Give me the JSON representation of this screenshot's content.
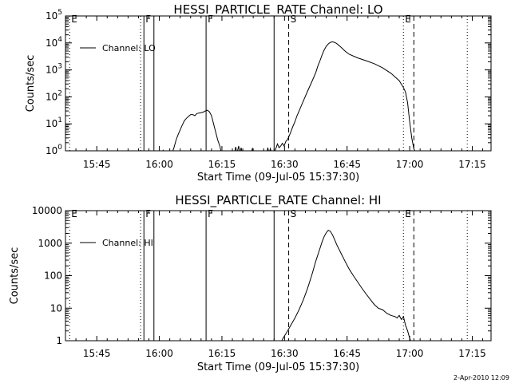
{
  "footer": {
    "timestamp": "2-Apr-2010 12:09"
  },
  "chart_data": [
    {
      "type": "line",
      "title": "HESSI_PARTICLE_RATE Channel: LO",
      "xlabel": "Start Time (09-Jul-05 15:37:30)",
      "ylabel": "Counts/sec",
      "x_unit": "minutes since 15:37:30",
      "xlim": [
        0,
        102
      ],
      "yscale": "log",
      "ylim": [
        1,
        100000
      ],
      "xticks": [
        {
          "x": 7.5,
          "label": "15:45"
        },
        {
          "x": 22.5,
          "label": "16:00"
        },
        {
          "x": 37.5,
          "label": "16:15"
        },
        {
          "x": 52.5,
          "label": "16:30"
        },
        {
          "x": 67.5,
          "label": "16:45"
        },
        {
          "x": 82.5,
          "label": "17:00"
        },
        {
          "x": 97.5,
          "label": "17:15"
        }
      ],
      "yticks": [
        {
          "y": 1,
          "label": "10^0"
        },
        {
          "y": 10,
          "label": "10^1"
        },
        {
          "y": 100,
          "label": "10^2"
        },
        {
          "y": 1000,
          "label": "10^3"
        },
        {
          "y": 10000,
          "label": "10^4"
        },
        {
          "y": 100000,
          "label": "10^5"
        }
      ],
      "legend": {
        "position": "top-left",
        "entries": [
          "Channel: LO"
        ]
      },
      "markers": [
        {
          "x": 1.0,
          "label": "E",
          "style": "dotted"
        },
        {
          "x": 18.0,
          "label": "",
          "style": "dotted"
        },
        {
          "x": 18.8,
          "label": "F",
          "style": "solid"
        },
        {
          "x": 21.2,
          "label": "",
          "style": "solid"
        },
        {
          "x": 33.7,
          "label": "F",
          "style": "solid"
        },
        {
          "x": 50.0,
          "label": "",
          "style": "solid"
        },
        {
          "x": 53.5,
          "label": "S",
          "style": "dashed"
        },
        {
          "x": 81.0,
          "label": "E",
          "style": "dotted"
        },
        {
          "x": 83.5,
          "label": "",
          "style": "dashed"
        },
        {
          "x": 96.3,
          "label": "",
          "style": "dotted"
        }
      ],
      "series": [
        {
          "segments": [
            {
              "x": [
                23.0,
                23.4,
                23.8
              ],
              "y": [
                0.8,
                1.05,
                0.8
              ]
            },
            {
              "x": [
                25.5,
                26.0,
                26.5,
                27.0,
                27.5,
                28.0,
                28.5,
                29.0,
                29.5,
                30.0,
                30.5,
                31.0,
                31.5,
                32.0,
                32.5,
                33.0,
                33.5,
                34.0,
                34.5,
                35.0,
                35.5,
                36.0,
                36.5,
                37.0,
                37.4
              ],
              "y": [
                0.8,
                1.3,
                2.5,
                4,
                6,
                9,
                13,
                16,
                19,
                22,
                22,
                20,
                24,
                25,
                26,
                27,
                30,
                32,
                28,
                20,
                10,
                5,
                2.5,
                1.5,
                0.8
              ]
            },
            {
              "x": [
                40.5,
                40.8,
                41.1,
                41.5,
                41.8,
                42.1,
                42.4
              ],
              "y": [
                0.8,
                1.4,
                0.8,
                1.5,
                0.8,
                1.3,
                0.8
              ]
            },
            {
              "x": [
                44.5,
                44.8,
                45.1
              ],
              "y": [
                0.8,
                1.2,
                0.8
              ]
            },
            {
              "x": [
                48.2,
                48.5,
                48.8,
                49.1,
                49.4
              ],
              "y": [
                0.8,
                1.3,
                0.8,
                1.2,
                0.8
              ]
            },
            {
              "x": [
                50.0,
                50.4,
                50.8,
                51.2,
                51.6,
                52.0,
                52.4,
                52.8,
                53.2,
                53.6,
                54.0,
                54.5,
                55.0,
                55.5,
                56.0,
                57.0,
                58.0,
                59.0,
                60.0,
                60.5,
                61.0,
                61.5,
                62.0,
                62.5,
                63.0,
                63.5,
                64.0,
                64.5,
                65.0,
                66.0,
                67.0,
                68.0,
                70.0,
                72.0,
                74.0,
                76.0,
                78.0,
                80.0,
                81.0,
                81.5,
                82.0,
                82.5,
                83.0,
                83.5,
                84.0
              ],
              "y": [
                0.8,
                1.2,
                1.8,
                1.3,
                1.5,
                1.9,
                1.5,
                2.2,
                2.6,
                3.5,
                5,
                8,
                12,
                20,
                30,
                70,
                160,
                350,
                800,
                1400,
                2200,
                3600,
                5500,
                7500,
                9200,
                10500,
                11000,
                10500,
                9500,
                7000,
                5000,
                3800,
                2800,
                2200,
                1700,
                1200,
                750,
                400,
                220,
                150,
                60,
                12,
                3,
                1.2,
                0.8
              ]
            }
          ]
        }
      ]
    },
    {
      "type": "line",
      "title": "HESSI_PARTICLE_RATE Channel: HI",
      "xlabel": "Start Time (09-Jul-05 15:37:30)",
      "ylabel": "Counts/sec",
      "x_unit": "minutes since 15:37:30",
      "xlim": [
        0,
        102
      ],
      "yscale": "log",
      "ylim": [
        1,
        10000
      ],
      "xticks": [
        {
          "x": 7.5,
          "label": "15:45"
        },
        {
          "x": 22.5,
          "label": "16:00"
        },
        {
          "x": 37.5,
          "label": "16:15"
        },
        {
          "x": 52.5,
          "label": "16:30"
        },
        {
          "x": 67.5,
          "label": "16:45"
        },
        {
          "x": 82.5,
          "label": "17:00"
        },
        {
          "x": 97.5,
          "label": "17:15"
        }
      ],
      "yticks": [
        {
          "y": 1,
          "label": "1"
        },
        {
          "y": 10,
          "label": "10"
        },
        {
          "y": 100,
          "label": "100"
        },
        {
          "y": 1000,
          "label": "1000"
        },
        {
          "y": 10000,
          "label": "10000"
        }
      ],
      "legend": {
        "position": "top-left",
        "entries": [
          "Channel: HI"
        ]
      },
      "markers": [
        {
          "x": 1.0,
          "label": "E",
          "style": "dotted"
        },
        {
          "x": 18.0,
          "label": "",
          "style": "dotted"
        },
        {
          "x": 18.8,
          "label": "F",
          "style": "solid"
        },
        {
          "x": 21.2,
          "label": "",
          "style": "solid"
        },
        {
          "x": 33.7,
          "label": "F",
          "style": "solid"
        },
        {
          "x": 50.0,
          "label": "",
          "style": "solid"
        },
        {
          "x": 53.5,
          "label": "S",
          "style": "dashed"
        },
        {
          "x": 81.0,
          "label": "E",
          "style": "dotted"
        },
        {
          "x": 83.5,
          "label": "",
          "style": "dashed"
        },
        {
          "x": 96.3,
          "label": "",
          "style": "dotted"
        }
      ],
      "series": [
        {
          "segments": [
            {
              "x": [
                51.5,
                52.0,
                52.5,
                53.0,
                53.5,
                54.0,
                55.0,
                56.0,
                57.0,
                58.0,
                59.0,
                60.0,
                61.0,
                61.5,
                62.0,
                62.5,
                63.0,
                63.5,
                64.0,
                64.5,
                65.0,
                66.0,
                67.0,
                68.0,
                69.0,
                70.0,
                71.0,
                72.0,
                73.0,
                74.0,
                75.0,
                76.0,
                77.0,
                78.0,
                79.0,
                79.5,
                80.0,
                80.5,
                81.0,
                81.5,
                82.0,
                82.5,
                83.0
              ],
              "y": [
                0.8,
                1.1,
                1.4,
                1.8,
                2.3,
                3,
                5,
                9,
                18,
                40,
                100,
                280,
                700,
                1100,
                1600,
                2100,
                2500,
                2300,
                1800,
                1300,
                900,
                500,
                280,
                160,
                100,
                65,
                42,
                28,
                19,
                13,
                10,
                9,
                7,
                6,
                5.5,
                5,
                6,
                4.5,
                5.5,
                3,
                2,
                1.2,
                0.8
              ]
            }
          ]
        }
      ]
    }
  ]
}
